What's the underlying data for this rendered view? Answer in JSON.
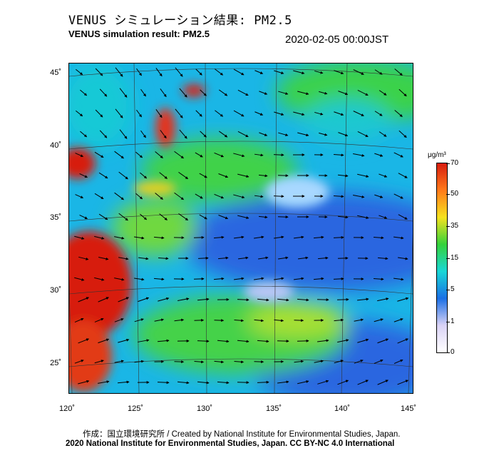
{
  "header": {
    "title_jp": "VENUS シミュレーション結果: PM2.5",
    "title_en": "VENUS simulation result: PM2.5",
    "timestamp": "2020-02-05 00:00JST"
  },
  "map": {
    "region": "East Asia / Japan",
    "variable": "PM2.5",
    "overlay": "wind vectors",
    "lat_labels": [
      "45˚",
      "40˚",
      "35˚",
      "30˚",
      "25˚"
    ],
    "lon_labels": [
      "120˚",
      "125˚",
      "130˚",
      "135˚",
      "140˚",
      "145˚"
    ]
  },
  "colorbar": {
    "unit": "μg/m³",
    "ticks": [
      "70",
      "50",
      "35",
      "15",
      "5",
      "1",
      "0"
    ],
    "colors": [
      "#d71c0e",
      "#ff7a1a",
      "#f5e21e",
      "#34d23a",
      "#18d6d6",
      "#1a6fe5",
      "#d9d2f5",
      "#ffffff"
    ]
  },
  "footer": {
    "credit_line1": "作成：国立環境研究所 / Created by National Institute for Environmental Studies, Japan.",
    "credit_line2": "2020 National Institute for Environmental Studies, Japan. CC BY-NC 4.0 International"
  }
}
